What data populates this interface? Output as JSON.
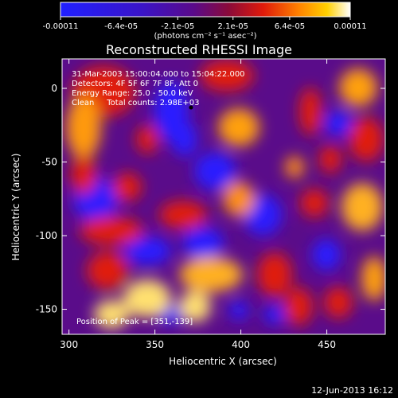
{
  "chart_data": {
    "type": "heatmap",
    "title": "Reconstructed RHESSI Image",
    "xlabel": "Heliocentric X (arcsec)",
    "ylabel": "Heliocentric Y (arcsec)",
    "xlim": [
      296,
      484
    ],
    "ylim": [
      -167,
      20
    ],
    "x_ticks": [
      300,
      350,
      400,
      450
    ],
    "y_ticks": [
      0,
      -50,
      -100,
      -150
    ],
    "colorbar": {
      "min": -0.00011,
      "max": 0.00011,
      "tick_labels": [
        "-0.00011",
        "-6.4e-05",
        "-2.1e-05",
        "2.1e-05",
        "6.4e-05",
        "0.00011"
      ],
      "tick_values": [
        -0.00011,
        -6.4e-05,
        -2.1e-05,
        2.1e-05,
        6.4e-05,
        0.00011
      ],
      "units": "(photons cm⁻² s⁻¹ asec⁻²)"
    },
    "annotations": [
      "31-Mar-2003 15:00:04.000 to 15:04:22.000",
      "Detectors: 4F 5F 6F 7F 8F, Att 0",
      "Energy Range: 25.0 - 50.0 keV",
      "Clean     Total counts: 2.98E+03"
    ],
    "peak_label": "Position of Peak = [351,-139]",
    "peak_position": [
      351,
      -139
    ],
    "marker_position": [
      371,
      -13
    ],
    "timestamp": "12-Jun-2013 16:12",
    "colors": {
      "negative": "#2020ff",
      "mid": "#6a0a8a",
      "positive_low": "#d01010",
      "positive_high": "#ffffc0"
    }
  }
}
